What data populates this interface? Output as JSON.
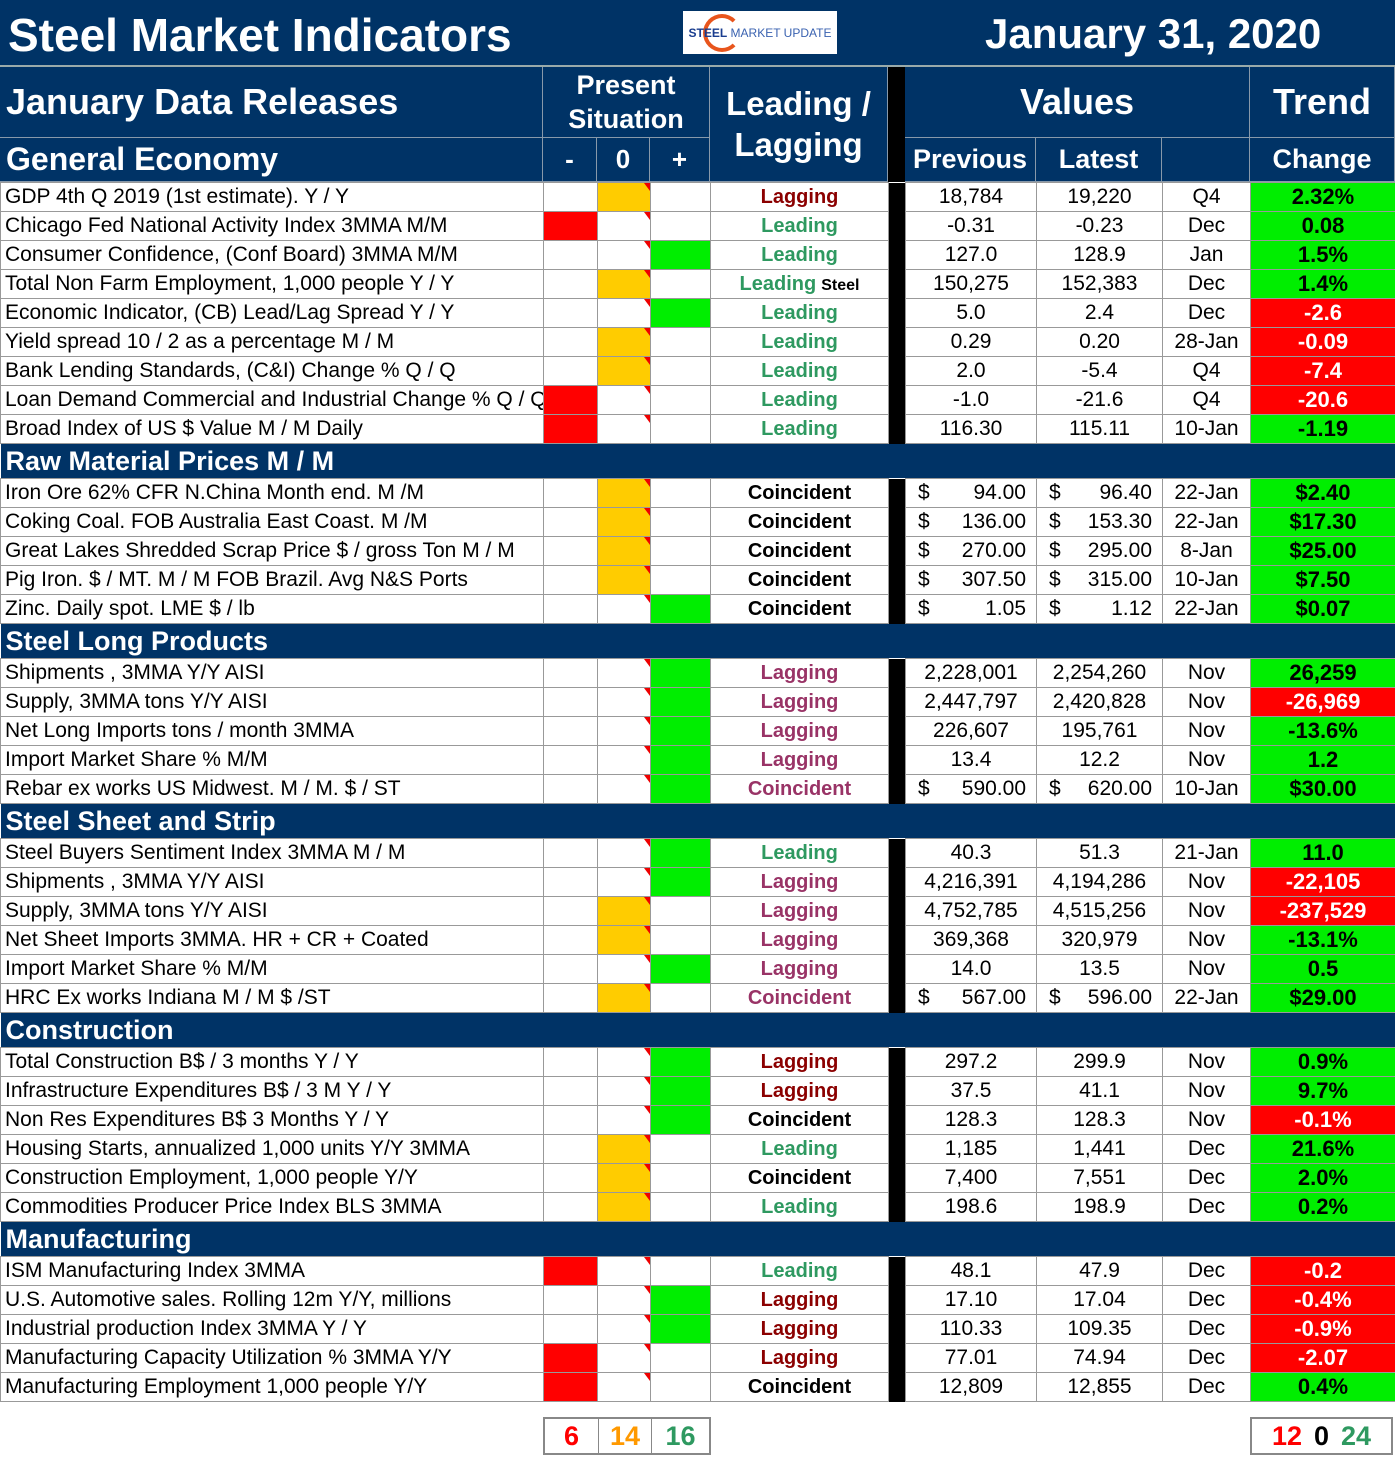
{
  "header": {
    "title": "Steel Market Indicators",
    "logo_text": "STEEL MARKET UPDATE",
    "date": "January 31, 2020"
  },
  "columns": {
    "releases": "January Data Releases",
    "present": "Present Situation",
    "minus": "-",
    "zero": "0",
    "plus": "+",
    "leadlag": "Leading / Lagging",
    "values": "Values",
    "trend": "Trend",
    "first_section": "General Economy",
    "previous": "Previous",
    "latest": "Latest",
    "change": "Change"
  },
  "colors": {
    "navy": "#003366",
    "negative": "#ff0000",
    "neutral": "#ffcc00",
    "positive": "#00ee00"
  },
  "sections": [
    {
      "title": "General Economy",
      "rows": [
        [
          "GDP 4th Q 2019 (1st estimate). Y / Y",
          "0",
          "Lagging",
          "dr",
          "18,784",
          "19,220",
          "Q4",
          "2.32%",
          "g"
        ],
        [
          "Chicago Fed National Activity Index 3MMA M/M",
          "-",
          "Leading",
          "g",
          "-0.31",
          "-0.23",
          "Dec",
          "0.08",
          "g"
        ],
        [
          "Consumer Confidence, (Conf Board) 3MMA M/M",
          "+",
          "Leading",
          "g",
          "127.0",
          "128.9",
          "Jan",
          "1.5%",
          "g"
        ],
        [
          "Total Non Farm Employment, 1,000 people Y / Y",
          "0",
          "Leading Steel",
          "g",
          "150,275",
          "152,383",
          "Dec",
          "1.4%",
          "g"
        ],
        [
          "Economic Indicator, (CB) Lead/Lag Spread Y / Y",
          "+",
          "Leading",
          "g",
          "5.0",
          "2.4",
          "Dec",
          "-2.6",
          "r"
        ],
        [
          "Yield spread 10 / 2 as a percentage M / M",
          "0",
          "Leading",
          "g",
          "0.29",
          "0.20",
          "28-Jan",
          "-0.09",
          "r"
        ],
        [
          "Bank Lending Standards, (C&I) Change % Q / Q",
          "0",
          "Leading",
          "g",
          "2.0",
          "-5.4",
          "Q4",
          "-7.4",
          "r"
        ],
        [
          "Loan Demand Commercial and Industrial Change % Q / Q",
          "-",
          "Leading",
          "g",
          "-1.0",
          "-21.6",
          "Q4",
          "-20.6",
          "r"
        ],
        [
          "Broad Index of US $ Value M / M Daily",
          "-",
          "Leading",
          "g",
          "116.30",
          "115.11",
          "10-Jan",
          "-1.19",
          "g"
        ]
      ]
    },
    {
      "title": "Raw Material Prices M / M",
      "currency": "$",
      "rows": [
        [
          "Iron Ore 62% CFR N.China Month end. M /M",
          "0",
          "Coincident",
          "k",
          "94.00",
          "96.40",
          "22-Jan",
          "$2.40",
          "g"
        ],
        [
          "Coking Coal. FOB Australia East Coast. M /M",
          "0",
          "Coincident",
          "k",
          "136.00",
          "153.30",
          "22-Jan",
          "$17.30",
          "g"
        ],
        [
          "Great Lakes Shredded Scrap Price $ / gross Ton M / M",
          "0",
          "Coincident",
          "k",
          "270.00",
          "295.00",
          "8-Jan",
          "$25.00",
          "g"
        ],
        [
          "Pig Iron. $ / MT. M / M FOB Brazil. Avg N&S Ports",
          "0",
          "Coincident",
          "k",
          "307.50",
          "315.00",
          "10-Jan",
          "$7.50",
          "g"
        ],
        [
          "Zinc. Daily spot. LME $ / lb",
          "+",
          "Coincident",
          "k",
          "1.05",
          "1.12",
          "22-Jan",
          "$0.07",
          "g"
        ]
      ]
    },
    {
      "title": "Steel Long Products",
      "rows": [
        [
          "Shipments , 3MMA Y/Y AISI",
          "+",
          "Lagging",
          "p",
          "2,228,001",
          "2,254,260",
          "Nov",
          "26,259",
          "g"
        ],
        [
          "Supply, 3MMA tons Y/Y AISI",
          "+",
          "Lagging",
          "p",
          "2,447,797",
          "2,420,828",
          "Nov",
          "-26,969",
          "r"
        ],
        [
          "Net Long Imports tons / month 3MMA",
          "+",
          "Lagging",
          "p",
          "226,607",
          "195,761",
          "Nov",
          "-13.6%",
          "g"
        ],
        [
          "Import Market Share %  M/M",
          "+",
          "Lagging",
          "p",
          "13.4",
          "12.2",
          "Nov",
          "1.2",
          "g"
        ],
        [
          "Rebar ex works US  Midwest. M / M. $ / ST",
          "+",
          "Coincident",
          "p",
          "$|590.00",
          "$|620.00",
          "10-Jan",
          "$30.00",
          "g"
        ]
      ]
    },
    {
      "title": "Steel Sheet and Strip",
      "rows": [
        [
          "Steel Buyers Sentiment Index 3MMA M / M",
          "+",
          "Leading",
          "g",
          "40.3",
          "51.3",
          "21-Jan",
          "11.0",
          "g"
        ],
        [
          "Shipments , 3MMA Y/Y AISI",
          "+",
          "Lagging",
          "p",
          "4,216,391",
          "4,194,286",
          "Nov",
          "-22,105",
          "r"
        ],
        [
          "Supply, 3MMA tons Y/Y AISI",
          "0",
          "Lagging",
          "p",
          "4,752,785",
          "4,515,256",
          "Nov",
          "-237,529",
          "r"
        ],
        [
          "Net Sheet Imports  3MMA. HR + CR + Coated",
          "0",
          "Lagging",
          "p",
          "369,368",
          "320,979",
          "Nov",
          "-13.1%",
          "g"
        ],
        [
          "Import Market Share % M/M",
          "+",
          "Lagging",
          "p",
          "14.0",
          "13.5",
          "Nov",
          "0.5",
          "g"
        ],
        [
          "HRC Ex works Indiana M / M $ /ST",
          "0",
          "Coincident",
          "p",
          "$|567.00",
          "$|596.00",
          "22-Jan",
          "$29.00",
          "g"
        ]
      ]
    },
    {
      "title": "Construction",
      "rows": [
        [
          "Total Construction B$ /  3 months Y / Y",
          "+",
          "Lagging",
          "dr",
          "297.2",
          "299.9",
          "Nov",
          "0.9%",
          "g"
        ],
        [
          "Infrastructure Expenditures B$ / 3 M    Y / Y",
          "+",
          "Lagging",
          "dr",
          "37.5",
          "41.1",
          "Nov",
          "9.7%",
          "g"
        ],
        [
          "Non Res Expenditures B$  3 Months   Y / Y",
          "+",
          "Coincident",
          "k",
          "128.3",
          "128.3",
          "Nov",
          "-0.1%",
          "r"
        ],
        [
          "Housing Starts, annualized 1,000 units Y/Y 3MMA",
          "0",
          "Leading",
          "g",
          "1,185",
          "1,441",
          "Dec",
          "21.6%",
          "g"
        ],
        [
          "Construction Employment, 1,000 people Y/Y",
          "0",
          "Coincident",
          "k",
          "7,400",
          "7,551",
          "Dec",
          "2.0%",
          "g"
        ],
        [
          "Commodities Producer Price Index BLS 3MMA",
          "0",
          "Leading",
          "g",
          "198.6",
          "198.9",
          "Dec",
          "0.2%",
          "g"
        ]
      ]
    },
    {
      "title": "Manufacturing",
      "rows": [
        [
          "ISM Manufacturing Index 3MMA",
          "-",
          "Leading",
          "g",
          "48.1",
          "47.9",
          "Dec",
          "-0.2",
          "r"
        ],
        [
          "U.S. Automotive sales. Rolling 12m Y/Y, millions",
          "+",
          "Lagging",
          "dr",
          "17.10",
          "17.04",
          "Dec",
          "-0.4%",
          "r"
        ],
        [
          "Industrial production Index 3MMA Y / Y",
          "+",
          "Lagging",
          "dr",
          "110.33",
          "109.35",
          "Dec",
          "-0.9%",
          "r"
        ],
        [
          "Manufacturing Capacity Utilization % 3MMA Y/Y",
          "-",
          "Lagging",
          "dr",
          "77.01",
          "74.94",
          "Dec",
          "-2.07",
          "r"
        ],
        [
          "Manufacturing Employment 1,000 people Y/Y",
          "-",
          "Coincident",
          "k",
          "12,809",
          "12,855",
          "Dec",
          "0.4%",
          "g"
        ]
      ]
    }
  ],
  "totals": {
    "situation": [
      "6",
      "14",
      "16"
    ],
    "trend": [
      "12",
      "0",
      "24"
    ]
  }
}
